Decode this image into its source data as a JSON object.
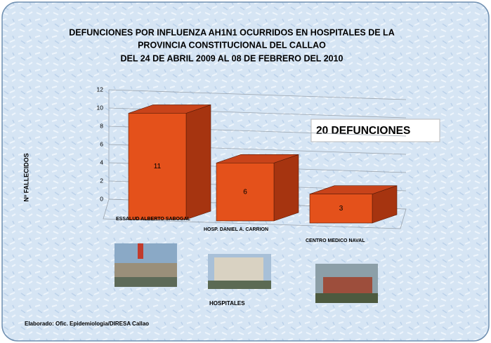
{
  "chart_data": {
    "type": "bar3d",
    "title": [
      "DEFUNCIONES  POR INFLUENZA AH1N1 OCURRIDOS EN HOSPITALES DE LA",
      "PROVINCIA CONSTITUCIONAL DEL CALLAO",
      "DEL 24 DE ABRIL 2009 AL  08 DE FEBRERO DEL 2010"
    ],
    "y_axis_label": "Nº FALLECIDOS",
    "x_axis_label": "HOSPITALES",
    "annotation": "20 DEFUNCIONES",
    "source": "Elaborado: Ofic. Epidemiologia/DIRESA Callao",
    "categories": [
      "ESSALUD ALBERTO SABOGAL",
      "HOSP. DANIEL A. CARRION",
      "CENTRO MEDICO NAVAL"
    ],
    "values": [
      11,
      6,
      3
    ],
    "color": "#e4511b",
    "ylim": [
      0,
      12
    ],
    "yticks": [
      0,
      2,
      4,
      6,
      8,
      10,
      12
    ],
    "grid": true
  }
}
